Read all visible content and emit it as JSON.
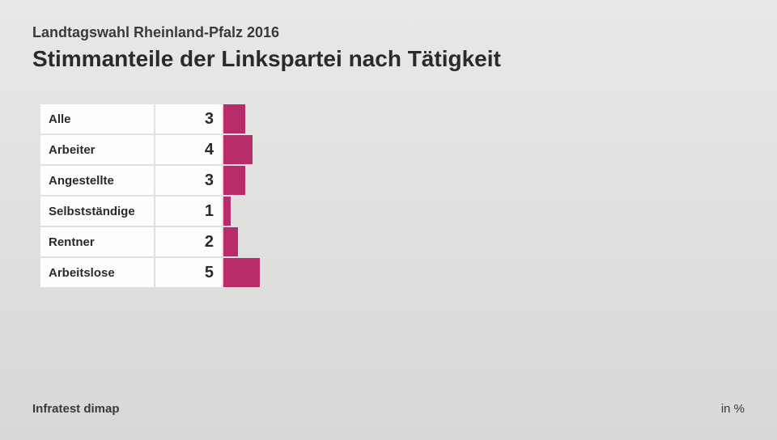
{
  "header": {
    "subtitle": "Landtagswahl Rheinland-Pfalz 2016",
    "title": "Stimmanteile der Linkspartei nach Tätigkeit"
  },
  "chart": {
    "type": "bar",
    "orientation": "horizontal",
    "bar_color": "#b82c6a",
    "label_bg": "#fdfdfb",
    "bar_unit_width": 9,
    "rows": [
      {
        "label": "Alle",
        "value": 3
      },
      {
        "label": "Arbeiter",
        "value": 4
      },
      {
        "label": "Angestellte",
        "value": 3
      },
      {
        "label": "Selbstständige",
        "value": 1
      },
      {
        "label": "Rentner",
        "value": 2
      },
      {
        "label": "Arbeitslose",
        "value": 5
      }
    ]
  },
  "footer": {
    "source": "Infratest dimap",
    "unit": "in %"
  }
}
